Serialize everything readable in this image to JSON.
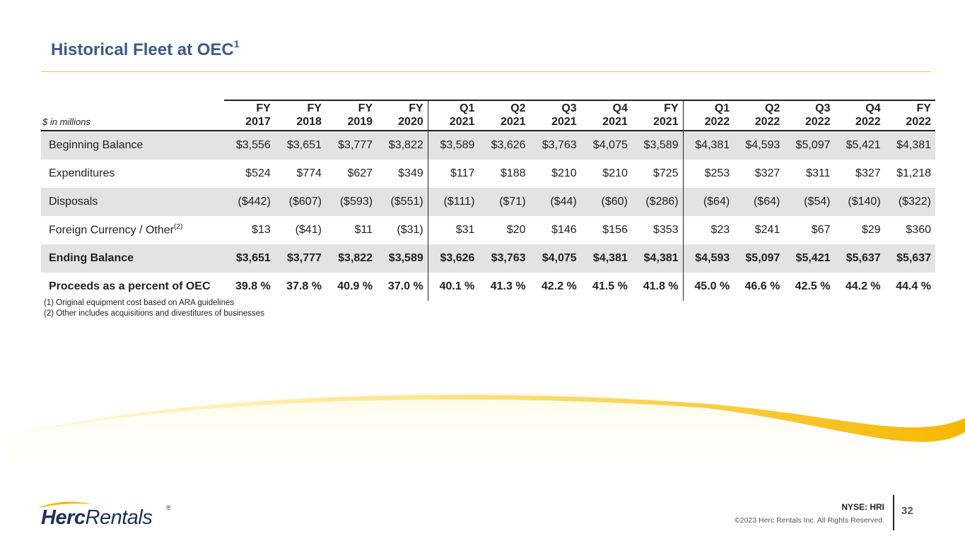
{
  "title": {
    "text": "Historical Fleet at OEC",
    "sup": "1"
  },
  "table": {
    "unit_label": "$ in millions",
    "columns": [
      {
        "period": "FY",
        "year": "2017"
      },
      {
        "period": "FY",
        "year": "2018"
      },
      {
        "period": "FY",
        "year": "2019"
      },
      {
        "period": "FY",
        "year": "2020"
      },
      {
        "period": "Q1",
        "year": "2021"
      },
      {
        "period": "Q2",
        "year": "2021"
      },
      {
        "period": "Q3",
        "year": "2021"
      },
      {
        "period": "Q4",
        "year": "2021"
      },
      {
        "period": "FY",
        "year": "2021"
      },
      {
        "period": "Q1",
        "year": "2022"
      },
      {
        "period": "Q2",
        "year": "2022"
      },
      {
        "period": "Q3",
        "year": "2022"
      },
      {
        "period": "Q4",
        "year": "2022"
      },
      {
        "period": "FY",
        "year": "2022"
      }
    ],
    "rows": [
      {
        "label": "Beginning Balance",
        "sup": "",
        "values": [
          "$3,556",
          "$3,651",
          "$3,777",
          "$3,822",
          "$3,589",
          "$3,626",
          "$3,763",
          "$4,075",
          "$3,589",
          "$4,381",
          "$4,593",
          "$5,097",
          "$5,421",
          "$4,381"
        ]
      },
      {
        "label": "Expenditures",
        "sup": "",
        "values": [
          "$524",
          "$774",
          "$627",
          "$349",
          "$117",
          "$188",
          "$210",
          "$210",
          "$725",
          "$253",
          "$327",
          "$311",
          "$327",
          "$1,218"
        ]
      },
      {
        "label": "Disposals",
        "sup": "",
        "values": [
          "($442)",
          "($607)",
          "($593)",
          "($551)",
          "($111)",
          "($71)",
          "($44)",
          "($60)",
          "($286)",
          "($64)",
          "($64)",
          "($54)",
          "($140)",
          "($322)"
        ]
      },
      {
        "label": "Foreign Currency / Other",
        "sup": "(2)",
        "values": [
          "$13",
          "($41)",
          "$11",
          "($31)",
          "$31",
          "$20",
          "$146",
          "$156",
          "$353",
          "$23",
          "$241",
          "$67",
          "$29",
          "$360"
        ]
      },
      {
        "label": "Ending Balance",
        "sup": "",
        "values": [
          "$3,651",
          "$3,777",
          "$3,822",
          "$3,589",
          "$3,626",
          "$3,763",
          "$4,075",
          "$4,381",
          "$4,381",
          "$4,593",
          "$5,097",
          "$5,421",
          "$5,637",
          "$5,637"
        ]
      },
      {
        "label": "Proceeds as a percent of OEC",
        "sup": "",
        "values": [
          "39.8 %",
          "37.8 %",
          "40.9 %",
          "37.0 %",
          "40.1 %",
          "41.3 %",
          "42.2 %",
          "41.5 %",
          "41.8 %",
          "45.0 %",
          "46.6 %",
          "42.5 %",
          "44.2 %",
          "44.4 %"
        ]
      }
    ]
  },
  "footnotes": [
    "(1)  Original equipment cost based on ARA guidelines",
    "(2)  Other includes acquisitions and divestitures of businesses"
  ],
  "footer": {
    "logo_bold": "Herc",
    "logo_rest": "Rentals",
    "logo_reg": "®",
    "ticker": "NYSE: HRI",
    "copyright": "©2023 Herc Rentals Inc.  All Rights Reserved.",
    "page": "32"
  },
  "colors": {
    "title": "#3c5a8a",
    "accent": "#f5b800",
    "shade": "#e3e3e3",
    "logo": "#1e2f5c"
  }
}
